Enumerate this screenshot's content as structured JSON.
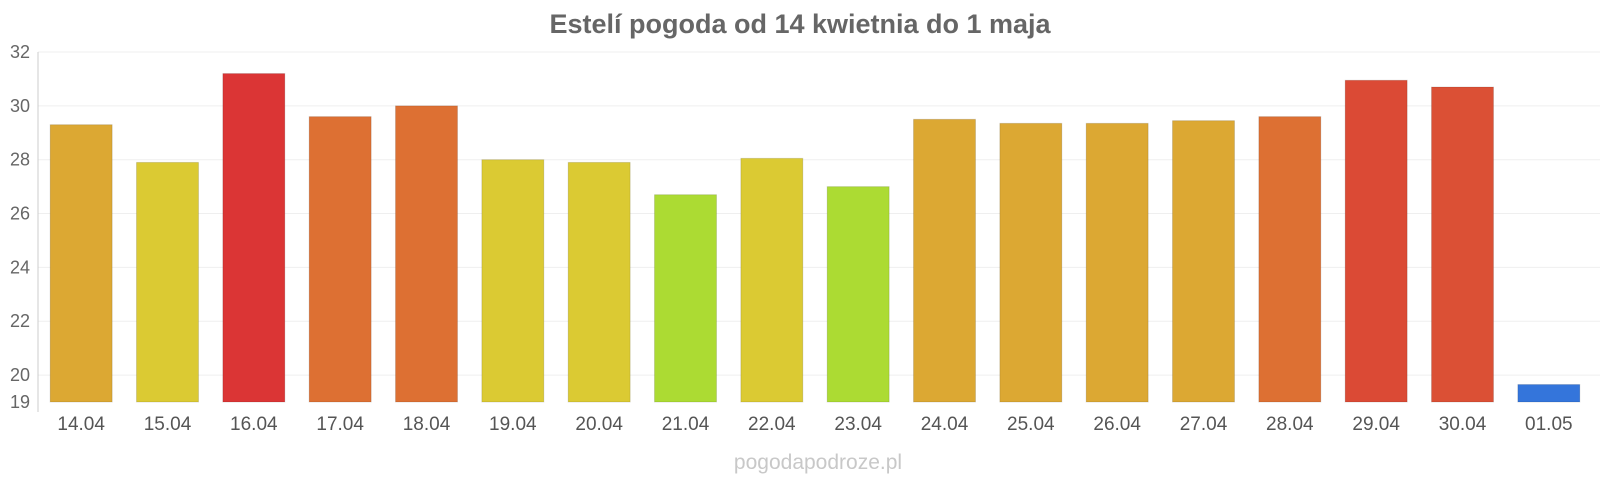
{
  "chart_data": {
    "type": "bar",
    "title": "Estelí pogoda od 14 kwietnia do 1 maja",
    "xlabel": "",
    "ylabel": "",
    "ylim": [
      19,
      32
    ],
    "yticks": [
      19,
      20,
      22,
      24,
      26,
      28,
      30,
      32
    ],
    "grid": true,
    "categories": [
      "14.04",
      "15.04",
      "16.04",
      "17.04",
      "18.04",
      "19.04",
      "20.04",
      "21.04",
      "22.04",
      "23.04",
      "24.04",
      "25.04",
      "26.04",
      "27.04",
      "28.04",
      "29.04",
      "30.04",
      "01.05"
    ],
    "values": [
      29.3,
      27.9,
      31.2,
      29.6,
      30.0,
      28.0,
      27.9,
      26.7,
      28.05,
      27.0,
      29.5,
      29.35,
      29.35,
      29.45,
      29.6,
      30.95,
      30.7,
      19.65
    ],
    "colors": [
      "#dca833",
      "#dbca33",
      "#db3535",
      "#dd7033",
      "#dd7033",
      "#dbca33",
      "#dbca33",
      "#acdb33",
      "#dbca33",
      "#acdb33",
      "#dca833",
      "#dca833",
      "#dca833",
      "#dca833",
      "#dd7033",
      "#db4a35",
      "#db5035",
      "#3475db"
    ],
    "watermark": "pogodapodroze.pl"
  }
}
